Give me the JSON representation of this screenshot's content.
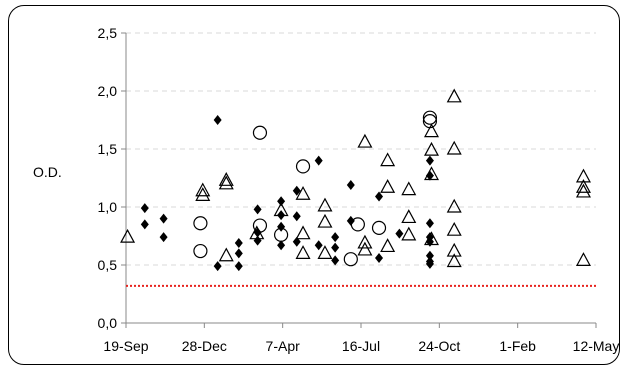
{
  "chart_data": {
    "type": "scatter",
    "ylabel": "O.D.",
    "xlabel": "",
    "title": "",
    "x_tick_labels": [
      "19-Sep",
      "28-Dec",
      "7-Apr",
      "16-Jul",
      "24-Oct",
      "1-Feb",
      "12-May"
    ],
    "y_tick_labels": [
      "0,0",
      "0,5",
      "1,0",
      "1,5",
      "2,0",
      "2,5"
    ],
    "xlim": [
      "19-Sep",
      "12-May"
    ],
    "ylim": [
      0,
      2.5
    ],
    "grid": "horizontal dashed",
    "threshold": {
      "value": 0.32,
      "color": "#e8231e",
      "style": "dotted"
    },
    "series": [
      {
        "marker": "filled-diamond",
        "color": "#000000",
        "points": [
          [
            "13-Oct",
            0.99
          ],
          [
            "13-Oct",
            0.85
          ],
          [
            "6-Nov",
            0.9
          ],
          [
            "6-Nov",
            0.74
          ],
          [
            "14-Jan",
            1.75
          ],
          [
            "14-Jan",
            0.49
          ],
          [
            "10-Feb",
            0.69
          ],
          [
            "10-Feb",
            0.6
          ],
          [
            "10-Feb",
            0.49
          ],
          [
            "6-Mar",
            0.98
          ],
          [
            "6-Mar",
            0.78
          ],
          [
            "6-Mar",
            0.71
          ],
          [
            "5-Apr",
            1.05
          ],
          [
            "5-Apr",
            0.93
          ],
          [
            "5-Apr",
            0.83
          ],
          [
            "5-Apr",
            0.67
          ],
          [
            "25-Apr",
            1.14
          ],
          [
            "25-Apr",
            0.92
          ],
          [
            "25-Apr",
            0.7
          ],
          [
            "23-May",
            1.4
          ],
          [
            "23-May",
            0.67
          ],
          [
            "13-Jun",
            0.74
          ],
          [
            "13-Jun",
            0.65
          ],
          [
            "13-Jun",
            0.54
          ],
          [
            "3-Jul",
            1.19
          ],
          [
            "3-Jul",
            0.88
          ],
          [
            "8-Aug",
            1.09
          ],
          [
            "8-Aug",
            0.56
          ],
          [
            "3-Sep",
            0.77
          ],
          [
            "12-Oct",
            1.4
          ],
          [
            "12-Oct",
            1.27
          ],
          [
            "12-Oct",
            0.86
          ],
          [
            "12-Oct",
            0.74
          ],
          [
            "12-Oct",
            0.7
          ],
          [
            "12-Oct",
            0.58
          ],
          [
            "12-Oct",
            0.53
          ],
          [
            "12-Oct",
            0.51
          ]
        ]
      },
      {
        "marker": "open-circle",
        "color": "#000000",
        "points": [
          [
            "23-Dec",
            0.86
          ],
          [
            "23-Dec",
            0.62
          ],
          [
            "9-Mar",
            1.64
          ],
          [
            "9-Mar",
            0.84
          ],
          [
            "5-Apr",
            0.76
          ],
          [
            "3-May",
            1.35
          ],
          [
            "12-Jul",
            0.85
          ],
          [
            "3-Jul",
            0.55
          ],
          [
            "8-Aug",
            0.82
          ],
          [
            "12-Oct",
            1.77
          ],
          [
            "12-Oct",
            1.74
          ]
        ]
      },
      {
        "marker": "open-triangle",
        "color": "#000000",
        "points": [
          [
            "21-Sep",
            0.74
          ],
          [
            "26-Dec",
            1.14
          ],
          [
            "26-Dec",
            1.1
          ],
          [
            "25-Jan",
            1.23
          ],
          [
            "25-Jan",
            1.2
          ],
          [
            "25-Jan",
            0.58
          ],
          [
            "5-Apr",
            0.97
          ],
          [
            "5-Mar",
            0.77
          ],
          [
            "3-May",
            1.11
          ],
          [
            "3-May",
            0.77
          ],
          [
            "3-May",
            0.6
          ],
          [
            "31-May",
            1.01
          ],
          [
            "31-May",
            0.87
          ],
          [
            "31-May",
            0.6
          ],
          [
            "21-Jul",
            1.56
          ],
          [
            "21-Jul",
            0.69
          ],
          [
            "21-Jul",
            0.63
          ],
          [
            "19-Aug",
            1.4
          ],
          [
            "19-Aug",
            1.17
          ],
          [
            "19-Aug",
            0.66
          ],
          [
            "15-Sep",
            1.15
          ],
          [
            "15-Sep",
            0.91
          ],
          [
            "15-Sep",
            0.76
          ],
          [
            "14-Oct",
            1.65
          ],
          [
            "14-Oct",
            1.49
          ],
          [
            "14-Oct",
            1.28
          ],
          [
            "14-Oct",
            0.72
          ],
          [
            "12-Nov",
            1.95
          ],
          [
            "12-Nov",
            1.5
          ],
          [
            "12-Nov",
            1.0
          ],
          [
            "12-Nov",
            0.8
          ],
          [
            "12-Nov",
            0.62
          ],
          [
            "12-Nov",
            0.53
          ],
          [
            "26-Apr",
            1.26
          ],
          [
            "26-Apr",
            1.17
          ],
          [
            "26-Apr",
            1.13
          ],
          [
            "26-Apr",
            0.54
          ]
        ]
      }
    ]
  }
}
